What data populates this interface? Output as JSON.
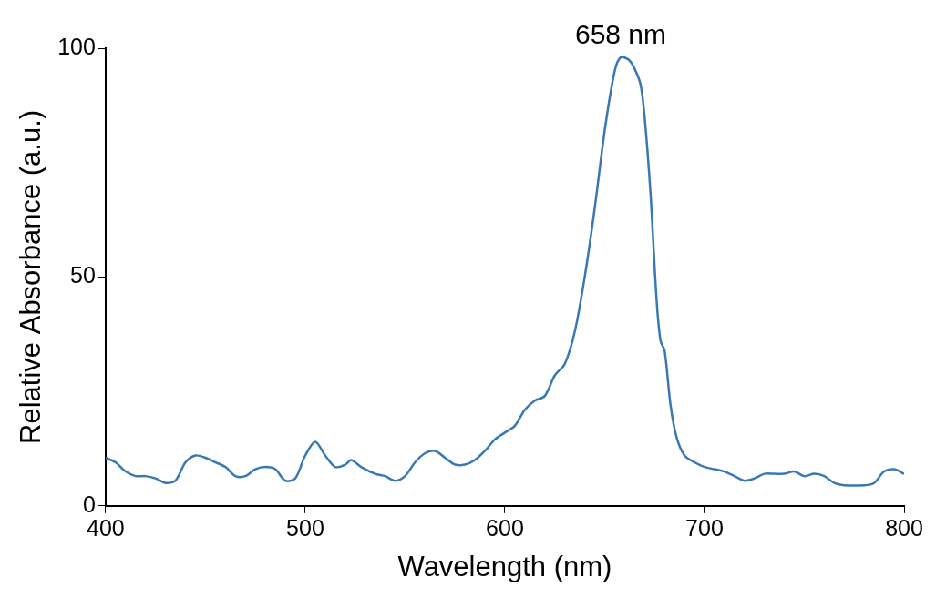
{
  "chart_data": {
    "type": "line",
    "x_label": "Wavelength (nm)",
    "y_label": "Relative Absorbance (a.u.)",
    "color": "#3a78b4",
    "xlim": [
      400,
      800
    ],
    "xticks": [
      400,
      500,
      600,
      700,
      800
    ],
    "ylim": [
      0,
      100
    ],
    "yticks": [
      0,
      50,
      100
    ],
    "grid": false,
    "annotations": [
      {
        "text": "658 nm",
        "x": 658,
        "y": 98
      }
    ],
    "x": [
      400,
      405,
      410,
      415,
      420,
      425,
      430,
      435,
      440,
      445,
      450,
      455,
      460,
      465,
      470,
      475,
      480,
      485,
      490,
      495,
      500,
      505,
      510,
      515,
      520,
      523,
      528,
      535,
      540,
      545,
      550,
      555,
      560,
      565,
      570,
      575,
      580,
      585,
      590,
      595,
      600,
      605,
      610,
      615,
      620,
      625,
      630,
      635,
      640,
      645,
      650,
      655,
      658,
      662,
      665,
      668,
      670,
      673,
      676,
      678,
      680,
      683,
      686,
      690,
      695,
      700,
      705,
      710,
      715,
      720,
      725,
      730,
      735,
      740,
      745,
      750,
      755,
      760,
      765,
      770,
      780,
      785,
      790,
      795,
      800
    ],
    "values": [
      10.5,
      9.5,
      7.5,
      6.5,
      6.5,
      6,
      5,
      5.5,
      9.5,
      11,
      10.5,
      9.5,
      8.5,
      6.5,
      6.5,
      8,
      8.5,
      8,
      5.5,
      6,
      11,
      14,
      11,
      8.5,
      9,
      10,
      8.5,
      7,
      6.5,
      5.5,
      6.5,
      9.5,
      11.5,
      12,
      10.5,
      9,
      9,
      10,
      12,
      14.5,
      16,
      17.5,
      21,
      23,
      24,
      28.5,
      31,
      38,
      50,
      65,
      82,
      95,
      98,
      97.5,
      95.5,
      92,
      85,
      68,
      45,
      36,
      34,
      22,
      15,
      11,
      9.5,
      8.5,
      8,
      7.5,
      6.5,
      5.5,
      6,
      7,
      7,
      7,
      7.5,
      6.5,
      7,
      6.5,
      5,
      4.5,
      4.5,
      5,
      7.5,
      8,
      7
    ]
  }
}
